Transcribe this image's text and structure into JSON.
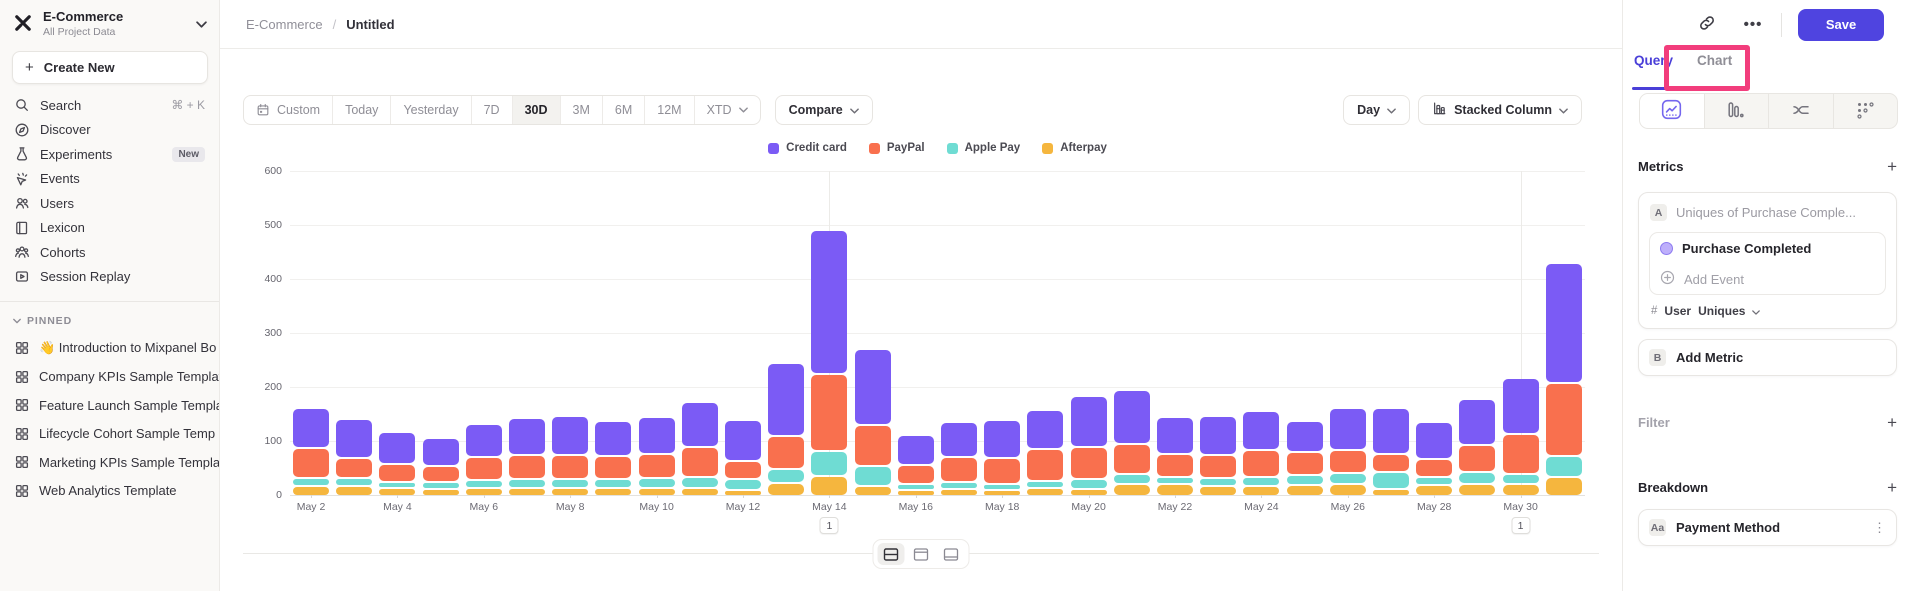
{
  "app": {
    "accent_color": "#4f44e0",
    "annotation_highlight_color": "#f23d7c"
  },
  "sidebar": {
    "project_name": "E-Commerce",
    "project_scope": "All Project Data",
    "create_new_label": "Create New",
    "nav_items": [
      {
        "label": "Search",
        "icon": "search-icon",
        "shortcut": "⌘ + K"
      },
      {
        "label": "Discover",
        "icon": "compass-icon"
      },
      {
        "label": "Experiments",
        "icon": "flask-icon",
        "badge": "New"
      },
      {
        "label": "Events",
        "icon": "events-icon"
      },
      {
        "label": "Users",
        "icon": "users-icon"
      },
      {
        "label": "Lexicon",
        "icon": "book-icon"
      },
      {
        "label": "Cohorts",
        "icon": "cohorts-icon"
      },
      {
        "label": "Session Replay",
        "icon": "replay-icon"
      }
    ],
    "pinned_label": "PINNED",
    "pinned_items": [
      "👋 Introduction to Mixpanel Bo",
      "Company KPIs Sample Templat",
      "Feature Launch Sample Templa",
      "Lifecycle Cohort Sample Temp",
      "Marketing KPIs Sample Templat",
      "Web Analytics Template"
    ]
  },
  "header": {
    "breadcrumb_project": "E-Commerce",
    "breadcrumb_separator": "/",
    "breadcrumb_page": "Untitled",
    "save_label": "Save"
  },
  "toolbar": {
    "date_ranges": [
      "Custom",
      "Today",
      "Yesterday",
      "7D",
      "30D",
      "3M",
      "6M",
      "12M",
      "XTD"
    ],
    "selected_range": "30D",
    "compare_label": "Compare",
    "granularity_label": "Day",
    "chart_type_label": "Stacked Column"
  },
  "right_panel": {
    "tabs": [
      {
        "label": "Query",
        "active": true
      },
      {
        "label": "Chart",
        "active": false
      }
    ],
    "metrics_title": "Metrics",
    "metric_a": {
      "badge": "A",
      "name_placeholder": "Uniques of Purchase Comple...",
      "event_label": "Purchase Completed",
      "add_event_label": "Add Event",
      "measure_symbol": "#",
      "measure_entity": "User",
      "measure_type": "Uniques"
    },
    "metric_b": {
      "badge": "B",
      "label": "Add Metric"
    },
    "filter_title": "Filter",
    "breakdown_title": "Breakdown",
    "breakdown_item": {
      "badge": "Aa",
      "label": "Payment Method"
    }
  },
  "bottom_bar": {
    "layouts": [
      "split-horizontal",
      "panel-top",
      "panel-bottom"
    ],
    "selected": "split-horizontal"
  },
  "chart_data": {
    "type": "bar",
    "stacked": true,
    "title": "",
    "xlabel": "",
    "ylabel": "",
    "ylim": [
      0,
      600
    ],
    "y_ticks": [
      600,
      500,
      400,
      300,
      200,
      100,
      0
    ],
    "grid": "horizontal",
    "legend_position": "top",
    "x": [
      "May 2",
      "May 3",
      "May 4",
      "May 5",
      "May 6",
      "May 7",
      "May 8",
      "May 9",
      "May 10",
      "May 11",
      "May 12",
      "May 13",
      "May 14",
      "May 15",
      "May 16",
      "May 17",
      "May 18",
      "May 19",
      "May 20",
      "May 21",
      "May 22",
      "May 23",
      "May 24",
      "May 25",
      "May 26",
      "May 27",
      "May 28",
      "May 29",
      "May 30",
      "May 31"
    ],
    "x_tick_labels": [
      "May 2",
      "May 4",
      "May 6",
      "May 8",
      "May 10",
      "May 12",
      "May 14",
      "May 16",
      "May 18",
      "May 20",
      "May 22",
      "May 24",
      "May 26",
      "May 28",
      "May 30"
    ],
    "series": [
      {
        "name": "Credit card",
        "color": "#7b5bf5",
        "values": [
          70,
          67,
          54,
          47,
          57,
          65,
          68,
          62,
          66,
          80,
          72,
          132,
          262,
          138,
          53,
          62,
          68,
          69,
          92,
          96,
          64,
          70,
          68,
          54,
          74,
          82,
          66,
          81,
          100,
          219
        ]
      },
      {
        "name": "PayPal",
        "color": "#f9704e",
        "values": [
          52,
          34,
          30,
          27,
          38,
          40,
          41,
          39,
          40,
          52,
          29,
          58,
          139,
          72,
          31,
          43,
          44,
          55,
          54,
          52,
          39,
          38,
          46,
          40,
          38,
          29,
          29,
          46,
          69,
          132
        ]
      },
      {
        "name": "Apple Pay",
        "color": "#6fdcd3",
        "values": [
          12,
          12,
          8,
          8,
          11,
          12,
          12,
          12,
          14,
          16,
          17,
          22,
          42,
          33,
          7,
          9,
          7,
          10,
          16,
          16,
          9,
          11,
          13,
          14,
          18,
          28,
          11,
          19,
          15,
          35
        ]
      },
      {
        "name": "Afterpay",
        "color": "#f5b63e",
        "values": [
          14,
          14,
          11,
          10,
          12,
          12,
          12,
          12,
          12,
          12,
          8,
          20,
          34,
          15,
          7,
          9,
          7,
          11,
          9,
          18,
          19,
          15,
          15,
          17,
          18,
          9,
          17,
          18,
          19,
          31
        ]
      }
    ],
    "annotations": [
      {
        "x": "May 14",
        "count": "1"
      },
      {
        "x": "May 30",
        "count": "1"
      }
    ]
  }
}
